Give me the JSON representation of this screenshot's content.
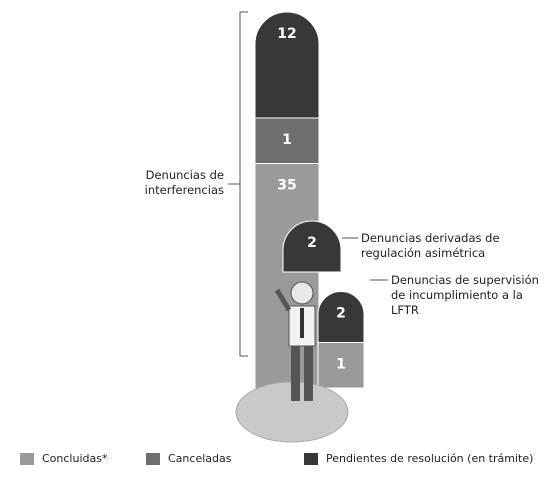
{
  "chart_data": {
    "type": "bar",
    "stacked": true,
    "categories": [
      "Denuncias de interferencias",
      "Denuncias derivadas de regulación asimétrica",
      "Denuncias de supervisión de incumplimiento a la LFTR"
    ],
    "series": [
      {
        "name": "Concluidas*",
        "color": "#9a9a9a",
        "values": [
          35,
          null,
          1
        ]
      },
      {
        "name": "Canceladas",
        "color": "#6e6e6e",
        "values": [
          1,
          null,
          null
        ]
      },
      {
        "name": "Pendientes de resolución (en trámite)",
        "color": "#383838",
        "values": [
          12,
          2,
          2
        ]
      }
    ]
  }
}
